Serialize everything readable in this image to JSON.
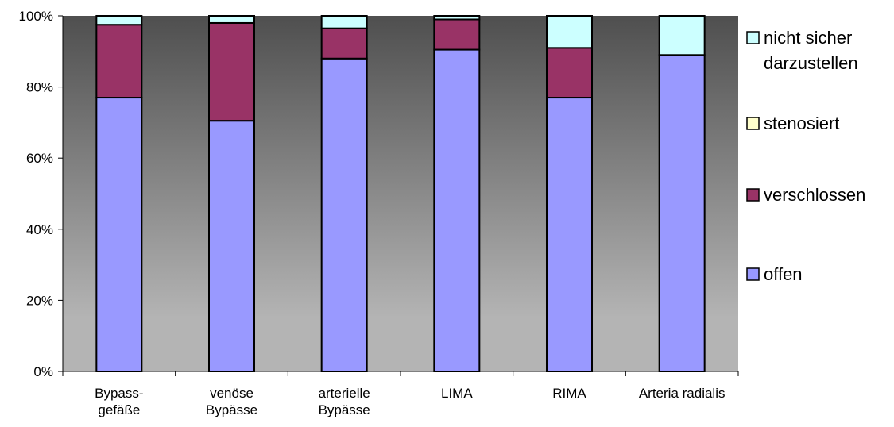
{
  "chart_data": {
    "type": "bar",
    "stacked": true,
    "percent": true,
    "categories": [
      [
        "Bypass-",
        "gefäße"
      ],
      [
        "venöse",
        "Bypässe"
      ],
      [
        "arterielle",
        "Bypässe"
      ],
      [
        "LIMA"
      ],
      [
        "RIMA"
      ],
      [
        "Arteria radialis"
      ]
    ],
    "series": [
      {
        "name": "offen",
        "color": "#9999ff",
        "values": [
          77,
          70.5,
          88,
          90.5,
          77,
          89
        ]
      },
      {
        "name": "verschlossen",
        "color": "#993366",
        "values": [
          20.5,
          27.5,
          8.5,
          8.5,
          14,
          0
        ]
      },
      {
        "name": "stenosiert",
        "color": "#ffffcc",
        "values": [
          0,
          0,
          0,
          0,
          0,
          0
        ]
      },
      {
        "name": "nicht sicher darzustellen",
        "color": "#ccffff",
        "values": [
          2.5,
          2,
          3.5,
          1,
          9,
          11
        ]
      }
    ],
    "legend_entries": [
      {
        "lines": [
          "nicht sicher",
          "darzustellen"
        ],
        "color": "#ccffff"
      },
      {
        "lines": [
          "stenosiert"
        ],
        "color": "#ffffcc"
      },
      {
        "lines": [
          "verschlossen"
        ],
        "color": "#993366"
      },
      {
        "lines": [
          "offen"
        ],
        "color": "#9999ff"
      }
    ],
    "yticks": [
      "0%",
      "20%",
      "40%",
      "60%",
      "80%",
      "100%"
    ],
    "ylim": [
      0,
      100
    ],
    "legend_position": "right",
    "grid": false,
    "plot_background": "gradient dark gray to light gray"
  }
}
